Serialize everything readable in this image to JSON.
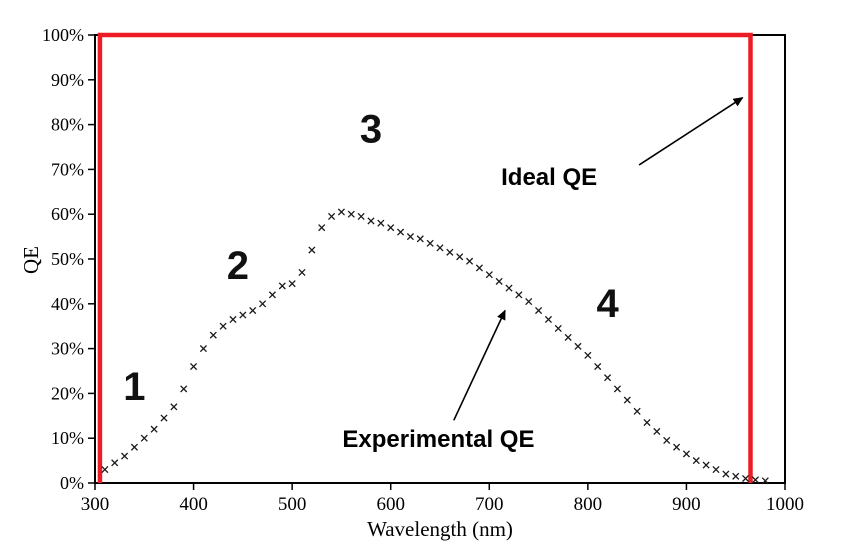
{
  "chart_data": {
    "type": "line",
    "title": "",
    "xlabel": "Wavelength (nm)",
    "ylabel": "QE",
    "xlim": [
      300,
      1000
    ],
    "ylim": [
      0,
      100
    ],
    "grid": false,
    "legend_position": "none (inline arrow annotations)",
    "x_tick_values": [
      300,
      400,
      500,
      600,
      700,
      800,
      900,
      1000
    ],
    "x_tick_labels": [
      "300",
      "400",
      "500",
      "600",
      "700",
      "800",
      "900",
      "1000"
    ],
    "y_tick_values": [
      0,
      10,
      20,
      30,
      40,
      50,
      60,
      70,
      80,
      90,
      100
    ],
    "y_tick_labels": [
      "0%",
      "10%",
      "20%",
      "30%",
      "40%",
      "50%",
      "60%",
      "70%",
      "80%",
      "90%",
      "100%"
    ],
    "colors": {
      "ideal": "#ed1c24",
      "experimental": "#1a1a1a",
      "axis": "#000000"
    },
    "series": [
      {
        "name": "Ideal QE",
        "type": "step-line",
        "color": "#ed1c24",
        "points": [
          [
            305,
            0
          ],
          [
            305,
            100
          ],
          [
            965,
            100
          ],
          [
            965,
            0
          ]
        ]
      },
      {
        "name": "Experimental QE",
        "type": "scatter",
        "marker": "x",
        "color": "#1a1a1a",
        "x": [
          310,
          320,
          330,
          340,
          350,
          360,
          370,
          380,
          390,
          400,
          410,
          420,
          430,
          440,
          450,
          460,
          470,
          480,
          490,
          500,
          510,
          520,
          530,
          540,
          550,
          560,
          570,
          580,
          590,
          600,
          610,
          620,
          630,
          640,
          650,
          660,
          670,
          680,
          690,
          700,
          710,
          720,
          730,
          740,
          750,
          760,
          770,
          780,
          790,
          800,
          810,
          820,
          830,
          840,
          850,
          860,
          870,
          880,
          890,
          900,
          910,
          920,
          930,
          940,
          950,
          960,
          970,
          980
        ],
        "y": [
          3,
          4.5,
          6,
          8,
          10,
          12,
          14.5,
          17,
          21,
          26,
          30,
          33,
          35,
          36.5,
          37.5,
          38.5,
          40,
          42,
          44,
          44.5,
          47,
          52,
          57,
          59.5,
          60.5,
          60,
          59.5,
          58.5,
          58,
          57,
          56,
          55,
          54.5,
          53.5,
          52.5,
          51.5,
          50.5,
          49.5,
          48,
          46.5,
          45,
          43.5,
          42,
          40.5,
          38.5,
          36.5,
          34.5,
          32.5,
          30.5,
          28.5,
          26,
          23.5,
          21,
          18.5,
          16,
          13.5,
          11.5,
          9.5,
          8,
          6.5,
          5,
          4,
          3,
          2,
          1.5,
          1,
          0.7,
          0.5
        ]
      }
    ],
    "region_labels": [
      {
        "text": "1",
        "wavelength": 340,
        "qe": 18.5
      },
      {
        "text": "2",
        "wavelength": 445,
        "qe": 45.5
      },
      {
        "text": "3",
        "wavelength": 580,
        "qe": 76
      },
      {
        "text": "4",
        "wavelength": 820,
        "qe": 37
      }
    ],
    "annotations": [
      {
        "text": "Ideal QE",
        "text_wavelength": 712,
        "text_qe": 66.5,
        "arrow_from_wavelength": 852,
        "arrow_from_qe": 71,
        "arrow_to_wavelength": 957,
        "arrow_to_qe": 86
      },
      {
        "text": "Experimental QE",
        "text_wavelength": 551,
        "text_qe": 8,
        "arrow_from_wavelength": 664,
        "arrow_from_qe": 14,
        "arrow_to_wavelength": 716,
        "arrow_to_qe": 38.5
      }
    ]
  }
}
